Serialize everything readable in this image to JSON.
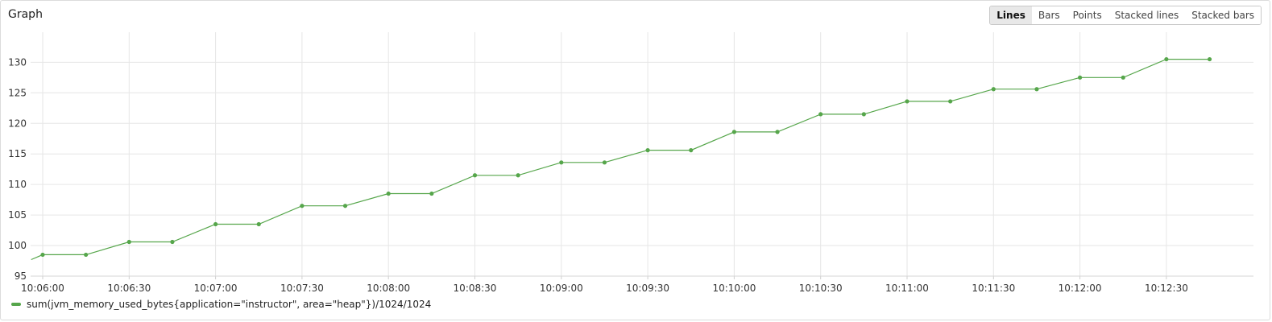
{
  "panel": {
    "title": "Graph",
    "view_modes": [
      "Lines",
      "Bars",
      "Points",
      "Stacked lines",
      "Stacked bars"
    ],
    "active_mode": "Lines"
  },
  "chart_data": {
    "type": "line",
    "title": "",
    "xlabel": "",
    "ylabel": "",
    "ylim": [
      95,
      132
    ],
    "y_ticks": [
      95,
      100,
      105,
      110,
      115,
      120,
      125,
      130
    ],
    "x_tick_labels": [
      "10:06:00",
      "10:06:30",
      "10:07:00",
      "10:07:30",
      "10:08:00",
      "10:08:30",
      "10:09:00",
      "10:09:30",
      "10:10:00",
      "10:10:30",
      "10:11:00",
      "10:11:30",
      "10:12:00",
      "10:12:30"
    ],
    "grid": true,
    "legend_position": "bottom-left",
    "series": [
      {
        "name": "sum(jvm_memory_used_bytes{application=\"instructor\", area=\"heap\"})/1024/1024",
        "color": "#56a64b",
        "x": [
          "10:05:56",
          "10:06:00",
          "10:06:15",
          "10:06:30",
          "10:06:45",
          "10:07:00",
          "10:07:15",
          "10:07:30",
          "10:07:45",
          "10:08:00",
          "10:08:15",
          "10:08:30",
          "10:08:45",
          "10:09:00",
          "10:09:15",
          "10:09:30",
          "10:09:45",
          "10:10:00",
          "10:10:15",
          "10:10:30",
          "10:10:45",
          "10:11:00",
          "10:11:15",
          "10:11:30",
          "10:11:45",
          "10:12:00",
          "10:12:15",
          "10:12:30",
          "10:12:45"
        ],
        "values": [
          97.7,
          98.5,
          98.5,
          100.6,
          100.6,
          103.5,
          103.5,
          106.5,
          106.5,
          108.5,
          108.5,
          111.5,
          111.5,
          113.6,
          113.6,
          115.6,
          115.6,
          118.6,
          118.6,
          121.5,
          121.5,
          123.6,
          123.6,
          125.6,
          125.6,
          127.5,
          127.5,
          130.5,
          130.5
        ],
        "markers": [
          false,
          true,
          true,
          true,
          true,
          true,
          true,
          true,
          true,
          true,
          true,
          true,
          true,
          true,
          true,
          true,
          true,
          true,
          true,
          true,
          true,
          true,
          true,
          true,
          true,
          true,
          true,
          true,
          true
        ]
      }
    ]
  }
}
